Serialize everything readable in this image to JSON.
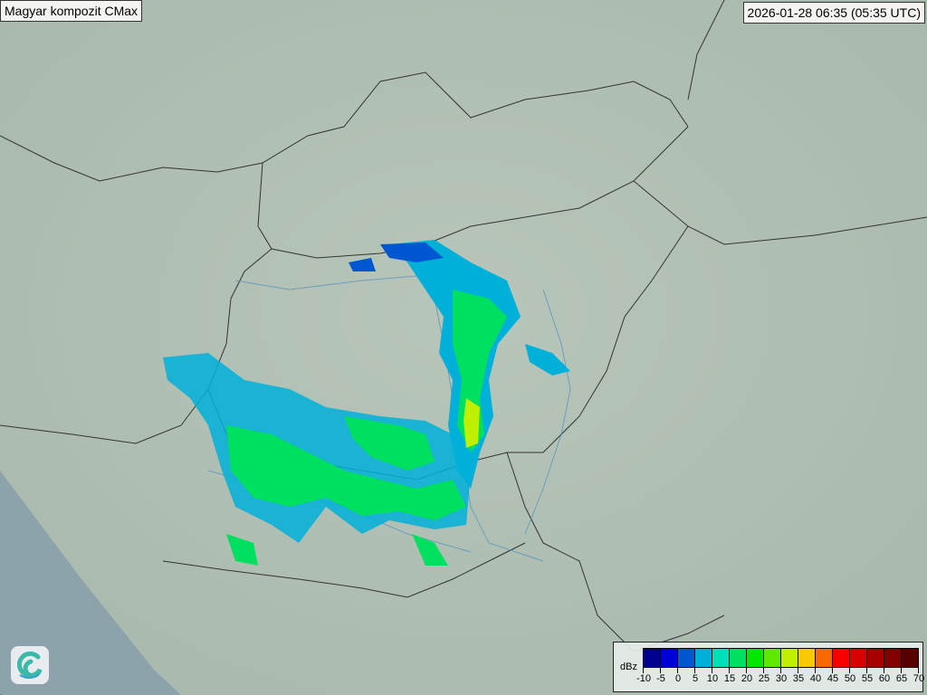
{
  "header": {
    "title": "Magyar kompozit  CMax",
    "timestamp": "2026-01-28 06:35 (05:35 UTC)"
  },
  "legend": {
    "unit": "dBz",
    "ticks": [
      "-10",
      "-5",
      "0",
      "5",
      "10",
      "15",
      "20",
      "25",
      "30",
      "35",
      "40",
      "45",
      "50",
      "55",
      "60",
      "65",
      "70"
    ],
    "colors": [
      "#000090",
      "#0000d8",
      "#0058d0",
      "#00b0d8",
      "#00e0b8",
      "#00e060",
      "#00e800",
      "#60e800",
      "#c0f000",
      "#f8c800",
      "#f86800",
      "#f80000",
      "#d80000",
      "#a80000",
      "#800000",
      "#580000"
    ]
  },
  "logo": {
    "icon": "swirl-logo-icon"
  }
}
